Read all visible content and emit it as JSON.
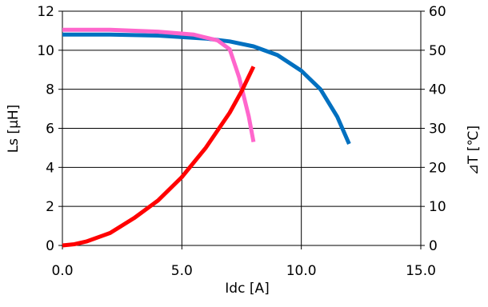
{
  "chart_data": {
    "type": "line",
    "title": "",
    "xlabel": "Idc [A]",
    "ylabel": "Ls [μH]",
    "y2label": "⊿T [℃]",
    "xlim": [
      0,
      15
    ],
    "ylim": [
      0,
      12
    ],
    "y2lim": [
      0,
      60
    ],
    "x_ticks": [
      "0.0",
      "5.0",
      "10.0",
      "15.0"
    ],
    "y_ticks": [
      "0",
      "2",
      "4",
      "6",
      "8",
      "10",
      "12"
    ],
    "y2_ticks": [
      "0",
      "10",
      "20",
      "30",
      "40",
      "50",
      "60"
    ],
    "grid": true,
    "legend": "none",
    "series": [
      {
        "axis": "left",
        "color": "#0070c0",
        "points": [
          [
            0,
            10.8
          ],
          [
            2,
            10.8
          ],
          [
            4,
            10.75
          ],
          [
            6,
            10.6
          ],
          [
            7,
            10.45
          ],
          [
            8,
            10.2
          ],
          [
            9,
            9.75
          ],
          [
            10,
            8.95
          ],
          [
            10.8,
            8.0
          ],
          [
            11.5,
            6.6
          ],
          [
            12.0,
            5.2
          ]
        ]
      },
      {
        "axis": "left",
        "color": "#ff66cc",
        "points": [
          [
            0,
            11.05
          ],
          [
            2,
            11.05
          ],
          [
            4,
            10.95
          ],
          [
            5.5,
            10.8
          ],
          [
            6.5,
            10.5
          ],
          [
            7.0,
            10.05
          ],
          [
            7.4,
            8.6
          ],
          [
            7.8,
            6.6
          ],
          [
            8.0,
            5.3
          ]
        ]
      },
      {
        "axis": "right",
        "color": "#ff0000",
        "points": [
          [
            0,
            0
          ],
          [
            0.5,
            0.3
          ],
          [
            1,
            1
          ],
          [
            2,
            3.2
          ],
          [
            3,
            7
          ],
          [
            4,
            11.5
          ],
          [
            5,
            17.5
          ],
          [
            6,
            25
          ],
          [
            7,
            34
          ],
          [
            7.5,
            39.5
          ],
          [
            8.0,
            45.8
          ]
        ]
      }
    ]
  }
}
